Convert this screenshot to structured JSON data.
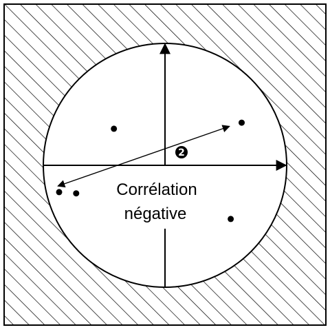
{
  "labels": {
    "line1": "Corrélation",
    "line2": "négative",
    "badge": "2"
  },
  "colors": {
    "ink": "#000000",
    "background": "#ffffff",
    "hatch": "#000000"
  },
  "chart_data": {
    "type": "scatter",
    "title": "",
    "xlabel": "",
    "ylabel": "",
    "xlim": [
      -1,
      1
    ],
    "ylim": [
      -1,
      1
    ],
    "grid": false,
    "points": [
      {
        "x": -0.42,
        "y": 0.3
      },
      {
        "x": 0.63,
        "y": 0.35
      },
      {
        "x": -0.87,
        "y": -0.22
      },
      {
        "x": -0.73,
        "y": -0.23
      },
      {
        "x": 0.54,
        "y": -0.44
      }
    ],
    "trend_arrow": {
      "from": {
        "x": -0.88,
        "y": -0.17
      },
      "to": {
        "x": 0.53,
        "y": 0.32
      }
    }
  }
}
